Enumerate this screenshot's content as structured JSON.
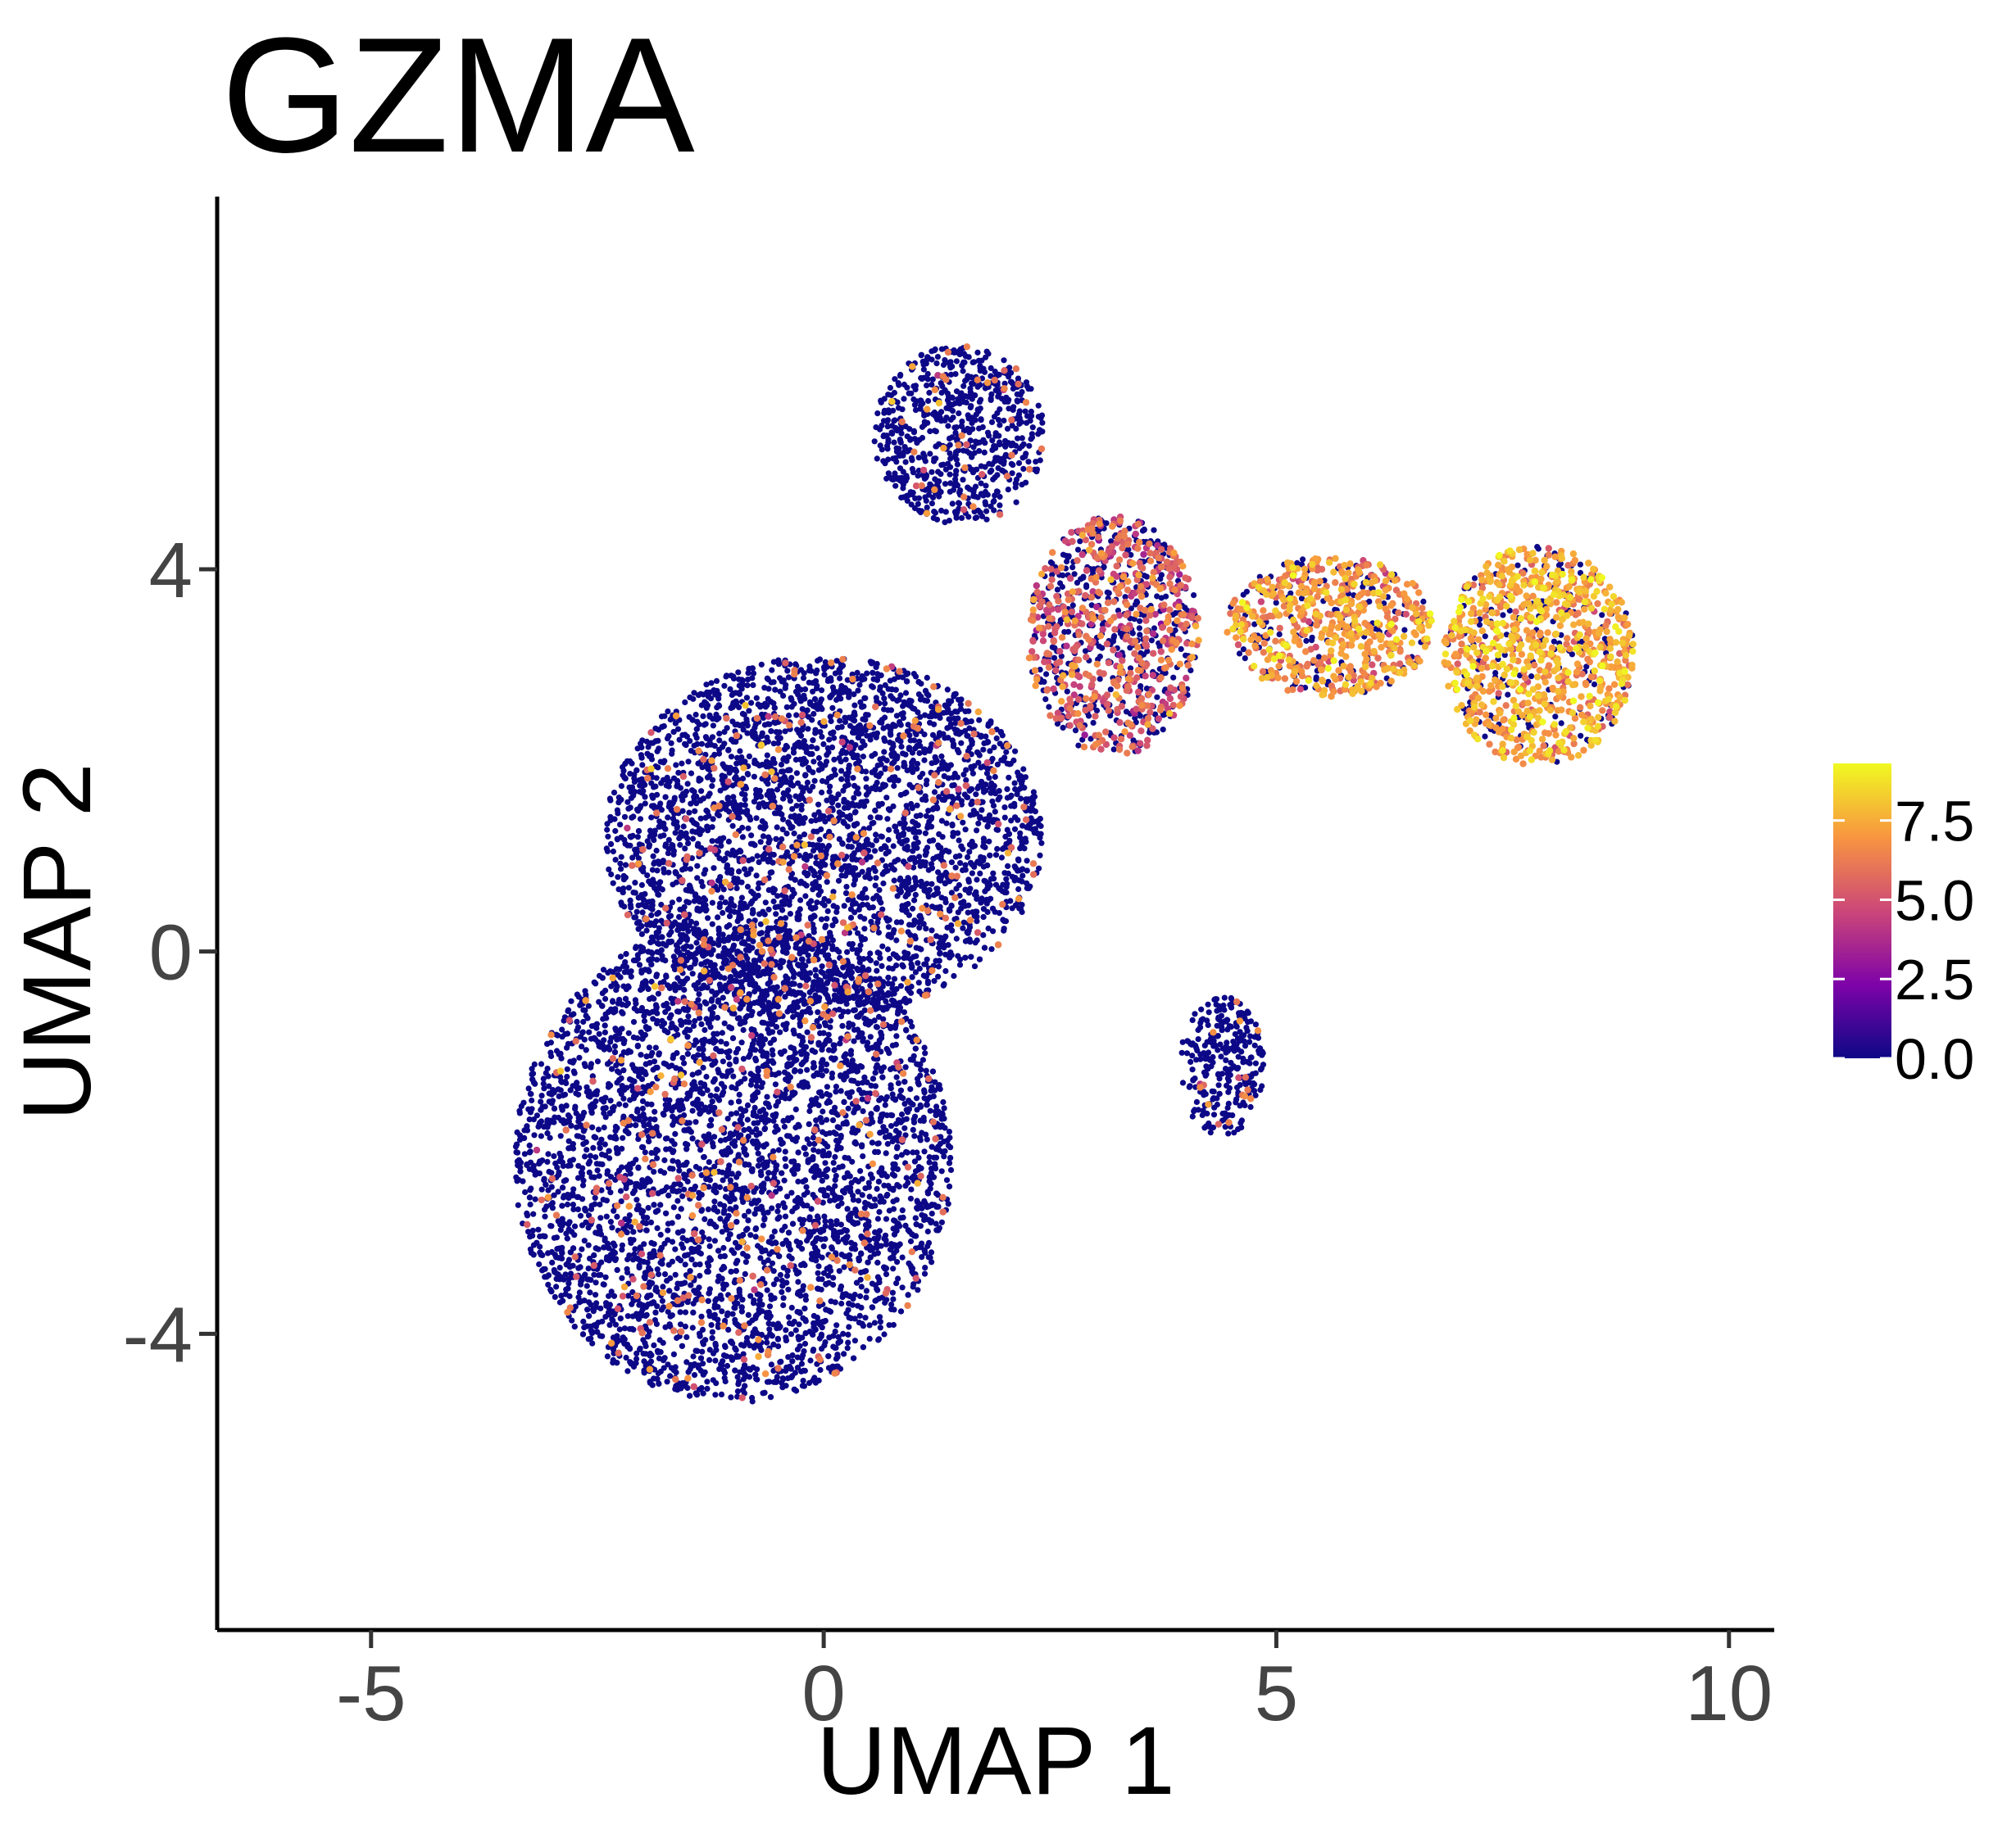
{
  "chart_data": {
    "type": "scatter",
    "title": "GZMA",
    "xlabel": "UMAP 1",
    "ylabel": "UMAP 2",
    "xlim": [
      -6.7,
      10.5
    ],
    "ylim": [
      -7.1,
      7.9
    ],
    "x_ticks": [
      -5,
      0,
      5,
      10
    ],
    "x_tick_labels": [
      "-5",
      "0",
      "5",
      "10"
    ],
    "y_ticks": [
      -4,
      0,
      4
    ],
    "y_tick_labels": [
      "-4",
      "0",
      "4"
    ],
    "grid": false,
    "color_scale": {
      "name": "plasma",
      "range": [
        0,
        9.3
      ],
      "ticks": [
        0.0,
        2.5,
        5.0,
        7.5
      ],
      "tick_labels": [
        "0.0",
        "2.5",
        "5.0",
        "7.5"
      ],
      "colors": [
        "#0d0887",
        "#7e03a8",
        "#cc4778",
        "#f89540",
        "#f0f921"
      ]
    },
    "legend_position": "right",
    "clusters": [
      {
        "center": [
          -1.0,
          -2.2
        ],
        "spread": [
          2.3,
          2.4
        ],
        "expression_level": 0.0,
        "positive_fraction": 0.05
      },
      {
        "center": [
          0.0,
          1.2
        ],
        "spread": [
          2.3,
          1.8
        ],
        "expression_level": 0.0,
        "positive_fraction": 0.06
      },
      {
        "center": [
          1.5,
          5.4
        ],
        "spread": [
          0.9,
          0.9
        ],
        "expression_level": 0.0,
        "positive_fraction": 0.05
      },
      {
        "center": [
          3.2,
          3.3
        ],
        "spread": [
          0.9,
          1.2
        ],
        "expression_level": 5.5,
        "positive_fraction": 0.55
      },
      {
        "center": [
          4.4,
          -1.2
        ],
        "spread": [
          0.45,
          0.7
        ],
        "expression_level": 0.0,
        "positive_fraction": 0.06
      },
      {
        "center": [
          7.9,
          3.1
        ],
        "spread": [
          1.0,
          1.1
        ],
        "expression_level": 7.3,
        "positive_fraction": 0.85
      },
      {
        "center": [
          5.6,
          3.4
        ],
        "spread": [
          1.1,
          0.7
        ],
        "expression_level": 6.8,
        "positive_fraction": 0.8
      }
    ]
  }
}
